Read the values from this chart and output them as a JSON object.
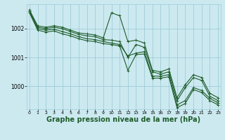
{
  "bg_color": "#cce9f0",
  "grid_color": "#9ecdd8",
  "line_color": "#1e5c2a",
  "xlabel": "Graphe pression niveau de la mer (hPa)",
  "xlabel_fontsize": 7,
  "ylim": [
    999.2,
    1002.85
  ],
  "xlim": [
    -0.3,
    23.3
  ],
  "yticks": [
    1000,
    1001,
    1002
  ],
  "xticks": [
    0,
    1,
    2,
    3,
    4,
    5,
    6,
    7,
    8,
    9,
    10,
    11,
    12,
    13,
    14,
    15,
    16,
    17,
    18,
    19,
    20,
    21,
    22,
    23
  ],
  "line1_x": [
    0,
    1,
    2,
    3,
    4,
    5,
    6,
    7,
    8,
    9,
    10,
    11,
    12,
    13,
    14,
    15,
    16,
    17,
    18,
    19,
    20,
    21,
    22,
    23
  ],
  "line1_y": [
    1002.65,
    1002.1,
    1002.05,
    1002.1,
    1002.05,
    1001.95,
    1001.85,
    1001.82,
    1001.78,
    1001.68,
    1002.55,
    1002.45,
    1001.55,
    1001.6,
    1001.5,
    1000.55,
    1000.5,
    1000.6,
    999.6,
    1000.05,
    1000.4,
    1000.3,
    999.75,
    999.6
  ],
  "line2_x": [
    0,
    1,
    2,
    3,
    4,
    5,
    6,
    7,
    8,
    9,
    10,
    11,
    12,
    13,
    14,
    15,
    16,
    17,
    18,
    19,
    20,
    21,
    22,
    23
  ],
  "line2_y": [
    1002.6,
    1002.05,
    1002.0,
    1002.05,
    1002.0,
    1001.9,
    1001.8,
    1001.75,
    1001.72,
    1001.62,
    1001.6,
    1001.55,
    1001.0,
    1001.45,
    1001.35,
    1000.5,
    1000.42,
    1000.5,
    999.5,
    999.95,
    1000.3,
    1000.2,
    999.65,
    999.5
  ],
  "line3_x": [
    0,
    1,
    2,
    3,
    4,
    5,
    6,
    7,
    8,
    9,
    10,
    11,
    12,
    13,
    14,
    15,
    16,
    17,
    18,
    19,
    20,
    21,
    22,
    23
  ],
  "line3_y": [
    1002.6,
    1002.0,
    1001.95,
    1001.98,
    1001.9,
    1001.82,
    1001.72,
    1001.65,
    1001.62,
    1001.55,
    1001.5,
    1001.45,
    1001.05,
    1001.15,
    1001.2,
    1000.35,
    1000.35,
    1000.4,
    999.35,
    999.5,
    999.95,
    999.85,
    999.58,
    999.42
  ],
  "line4_x": [
    0,
    1,
    2,
    3,
    4,
    5,
    6,
    7,
    8,
    9,
    10,
    11,
    12,
    13,
    14,
    15,
    16,
    17,
    18,
    19,
    20,
    21,
    22,
    23
  ],
  "line4_y": [
    1002.55,
    1001.95,
    1001.88,
    1001.92,
    1001.82,
    1001.75,
    1001.65,
    1001.58,
    1001.55,
    1001.48,
    1001.45,
    1001.4,
    1000.55,
    1001.1,
    1001.12,
    1000.28,
    1000.28,
    1000.33,
    999.25,
    999.4,
    999.88,
    999.78,
    999.5,
    999.35
  ]
}
